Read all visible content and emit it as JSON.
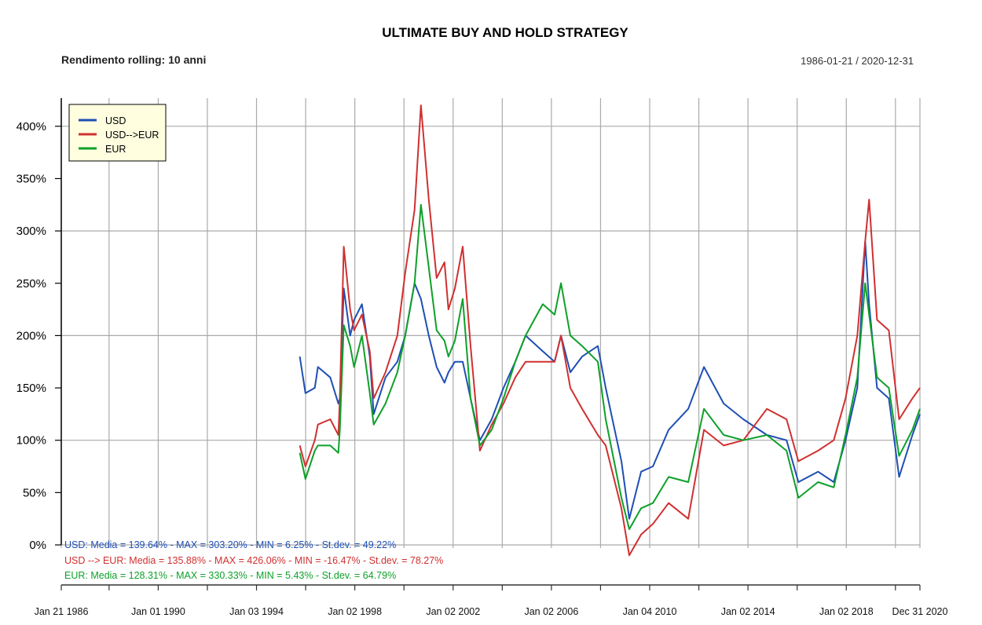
{
  "chart_data": {
    "type": "line",
    "title": "ULTIMATE BUY AND HOLD STRATEGY",
    "subtitle": "Rendimento rolling: 10 anni",
    "date_range_label": "1986-01-21 / 2020-12-31",
    "xlabel": "",
    "ylabel": "",
    "xlim": [
      1986.055,
      2020.997
    ],
    "ylim": [
      -24,
      427
    ],
    "grid": true,
    "yticks": [
      0,
      50,
      100,
      150,
      200,
      250,
      300,
      350,
      400
    ],
    "ytick_labels": [
      "0%",
      "50%",
      "100%",
      "150%",
      "200%",
      "250%",
      "300%",
      "350%",
      "400%"
    ],
    "xgrid": [
      1986.055,
      1988,
      1990,
      1992,
      1994,
      1996,
      1998,
      2000,
      2002,
      2004,
      2006,
      2008,
      2010,
      2012,
      2014,
      2016,
      2018,
      2020,
      2020.997
    ],
    "xtick_positions": [
      1986.055,
      1990.0,
      1994.0,
      1998.0,
      2002.0,
      2006.0,
      2010.0,
      2014.0,
      2018.0,
      2020.997
    ],
    "xtick_labels": [
      "Jan 21 1986",
      "Jan 01 1990",
      "Jan 03 1994",
      "Jan 02 1998",
      "Jan 02 2002",
      "Jan 02 2006",
      "Jan 04 2010",
      "Jan 02 2014",
      "Jan 02 2018",
      "Dec 31 2020"
    ],
    "legend": {
      "position": "top-left",
      "entries": [
        "USD",
        "USD-->EUR",
        "EUR"
      ],
      "background": "#ffffe0"
    },
    "x": [
      1995.76,
      1995.99,
      1996.37,
      1996.5,
      1997.0,
      1997.33,
      1997.39,
      1997.55,
      1997.81,
      1997.97,
      1998.29,
      1998.61,
      1998.77,
      1999.25,
      1999.73,
      2000.05,
      2000.43,
      2000.69,
      2001.01,
      2001.33,
      2001.65,
      2001.81,
      2002.07,
      2002.39,
      2002.71,
      2003.09,
      2003.57,
      2004.05,
      2004.53,
      2004.95,
      2005.65,
      2006.13,
      2006.39,
      2006.77,
      2007.25,
      2007.89,
      2008.21,
      2008.85,
      2009.17,
      2009.65,
      2010.13,
      2010.77,
      2011.57,
      2012.21,
      2013.01,
      2013.81,
      2014.77,
      2015.57,
      2016.05,
      2016.85,
      2017.49,
      2017.97,
      2018.45,
      2018.77,
      2018.93,
      2019.25,
      2019.73,
      2020.15,
      2020.69,
      2020.997
    ],
    "series": [
      {
        "name": "USD",
        "color": "#1f4fb4",
        "values": [
          180,
          145,
          150,
          170,
          160,
          135,
          140,
          245,
          200,
          215,
          230,
          180,
          125,
          160,
          175,
          200,
          250,
          235,
          200,
          170,
          155,
          165,
          175,
          175,
          140,
          100,
          120,
          150,
          175,
          200,
          185,
          175,
          200,
          165,
          180,
          190,
          150,
          80,
          25,
          70,
          75,
          110,
          130,
          170,
          135,
          120,
          105,
          100,
          60,
          70,
          60,
          100,
          150,
          290,
          230,
          150,
          140,
          65,
          105,
          125
        ],
        "stats": "USD: Media = 139.64% - MAX = 303.20% - MIN = 6.25% - St.dev. = 49.22%"
      },
      {
        "name": "USD-->EUR",
        "color": "#d03030",
        "values": [
          95,
          75,
          100,
          115,
          120,
          105,
          140,
          285,
          225,
          205,
          220,
          185,
          140,
          165,
          200,
          260,
          320,
          420,
          330,
          255,
          270,
          225,
          245,
          285,
          190,
          90,
          115,
          135,
          160,
          175,
          175,
          175,
          200,
          150,
          130,
          105,
          95,
          35,
          -10,
          10,
          20,
          40,
          25,
          110,
          95,
          100,
          130,
          120,
          80,
          90,
          100,
          140,
          200,
          290,
          330,
          215,
          205,
          120,
          140,
          150
        ],
        "stats": "USD --> EUR: Media  = 135.88% - MAX = 426.06% - MIN = -16.47% - St.dev. = 78.27%"
      },
      {
        "name": "EUR",
        "color": "#0ea02a",
        "values": [
          88,
          63,
          90,
          95,
          95,
          88,
          110,
          210,
          190,
          170,
          200,
          145,
          115,
          135,
          165,
          200,
          250,
          325,
          265,
          205,
          195,
          180,
          195,
          235,
          140,
          95,
          110,
          140,
          175,
          200,
          230,
          220,
          250,
          200,
          190,
          175,
          120,
          45,
          15,
          35,
          40,
          65,
          60,
          130,
          105,
          100,
          105,
          90,
          45,
          60,
          55,
          105,
          160,
          250,
          220,
          160,
          150,
          85,
          110,
          130
        ],
        "stats": "EUR: Media = 128.31% - MAX = 330.33% - MIN = 5.43% - St.dev. = 64.79%"
      }
    ]
  }
}
